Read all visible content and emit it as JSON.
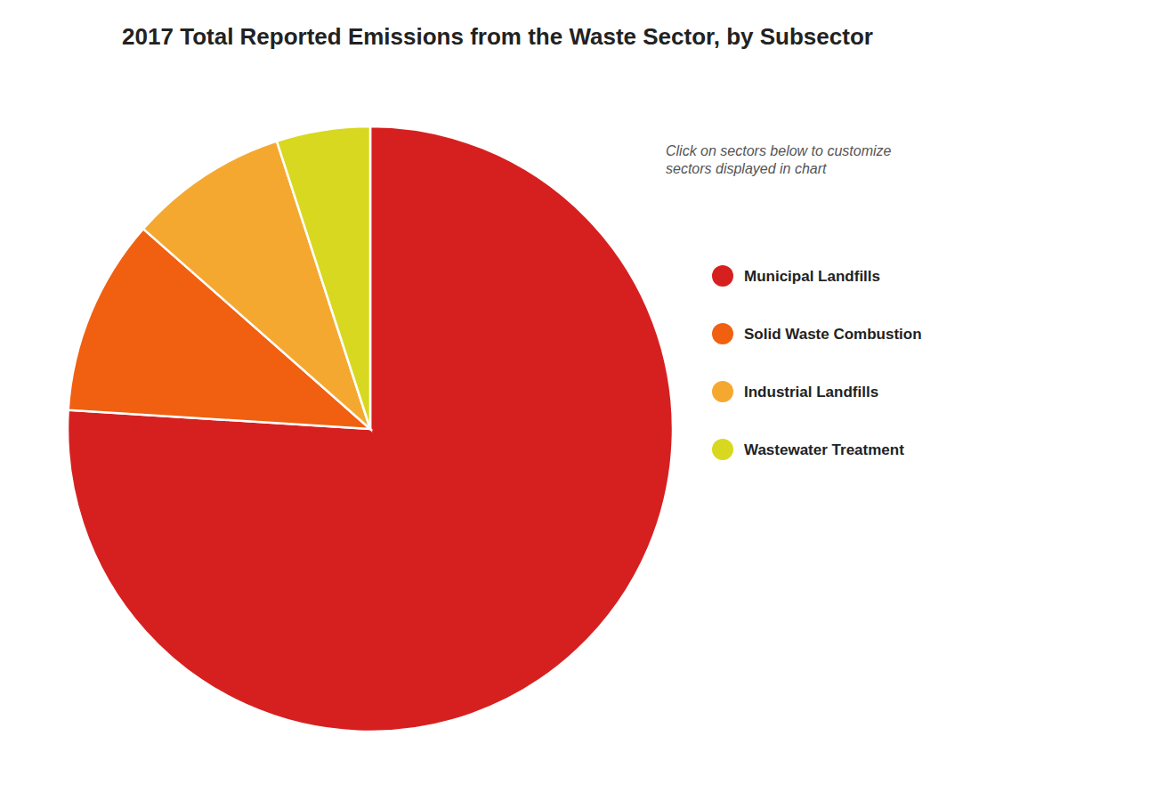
{
  "chart_data": {
    "type": "pie",
    "title": "2017 Total Reported Emissions from the Waste Sector, by Subsector",
    "annotation": "Click on sectors below to customize\nsectors displayed in chart",
    "categories": [
      "Municipal Landfills",
      "Solid Waste Combustion",
      "Industrial Landfills",
      "Wastewater Treatment"
    ],
    "values": [
      76.0,
      10.5,
      8.5,
      5.0
    ],
    "colors": [
      "#d62020",
      "#f06010",
      "#f5a830",
      "#d8d820"
    ],
    "legend": "right"
  }
}
